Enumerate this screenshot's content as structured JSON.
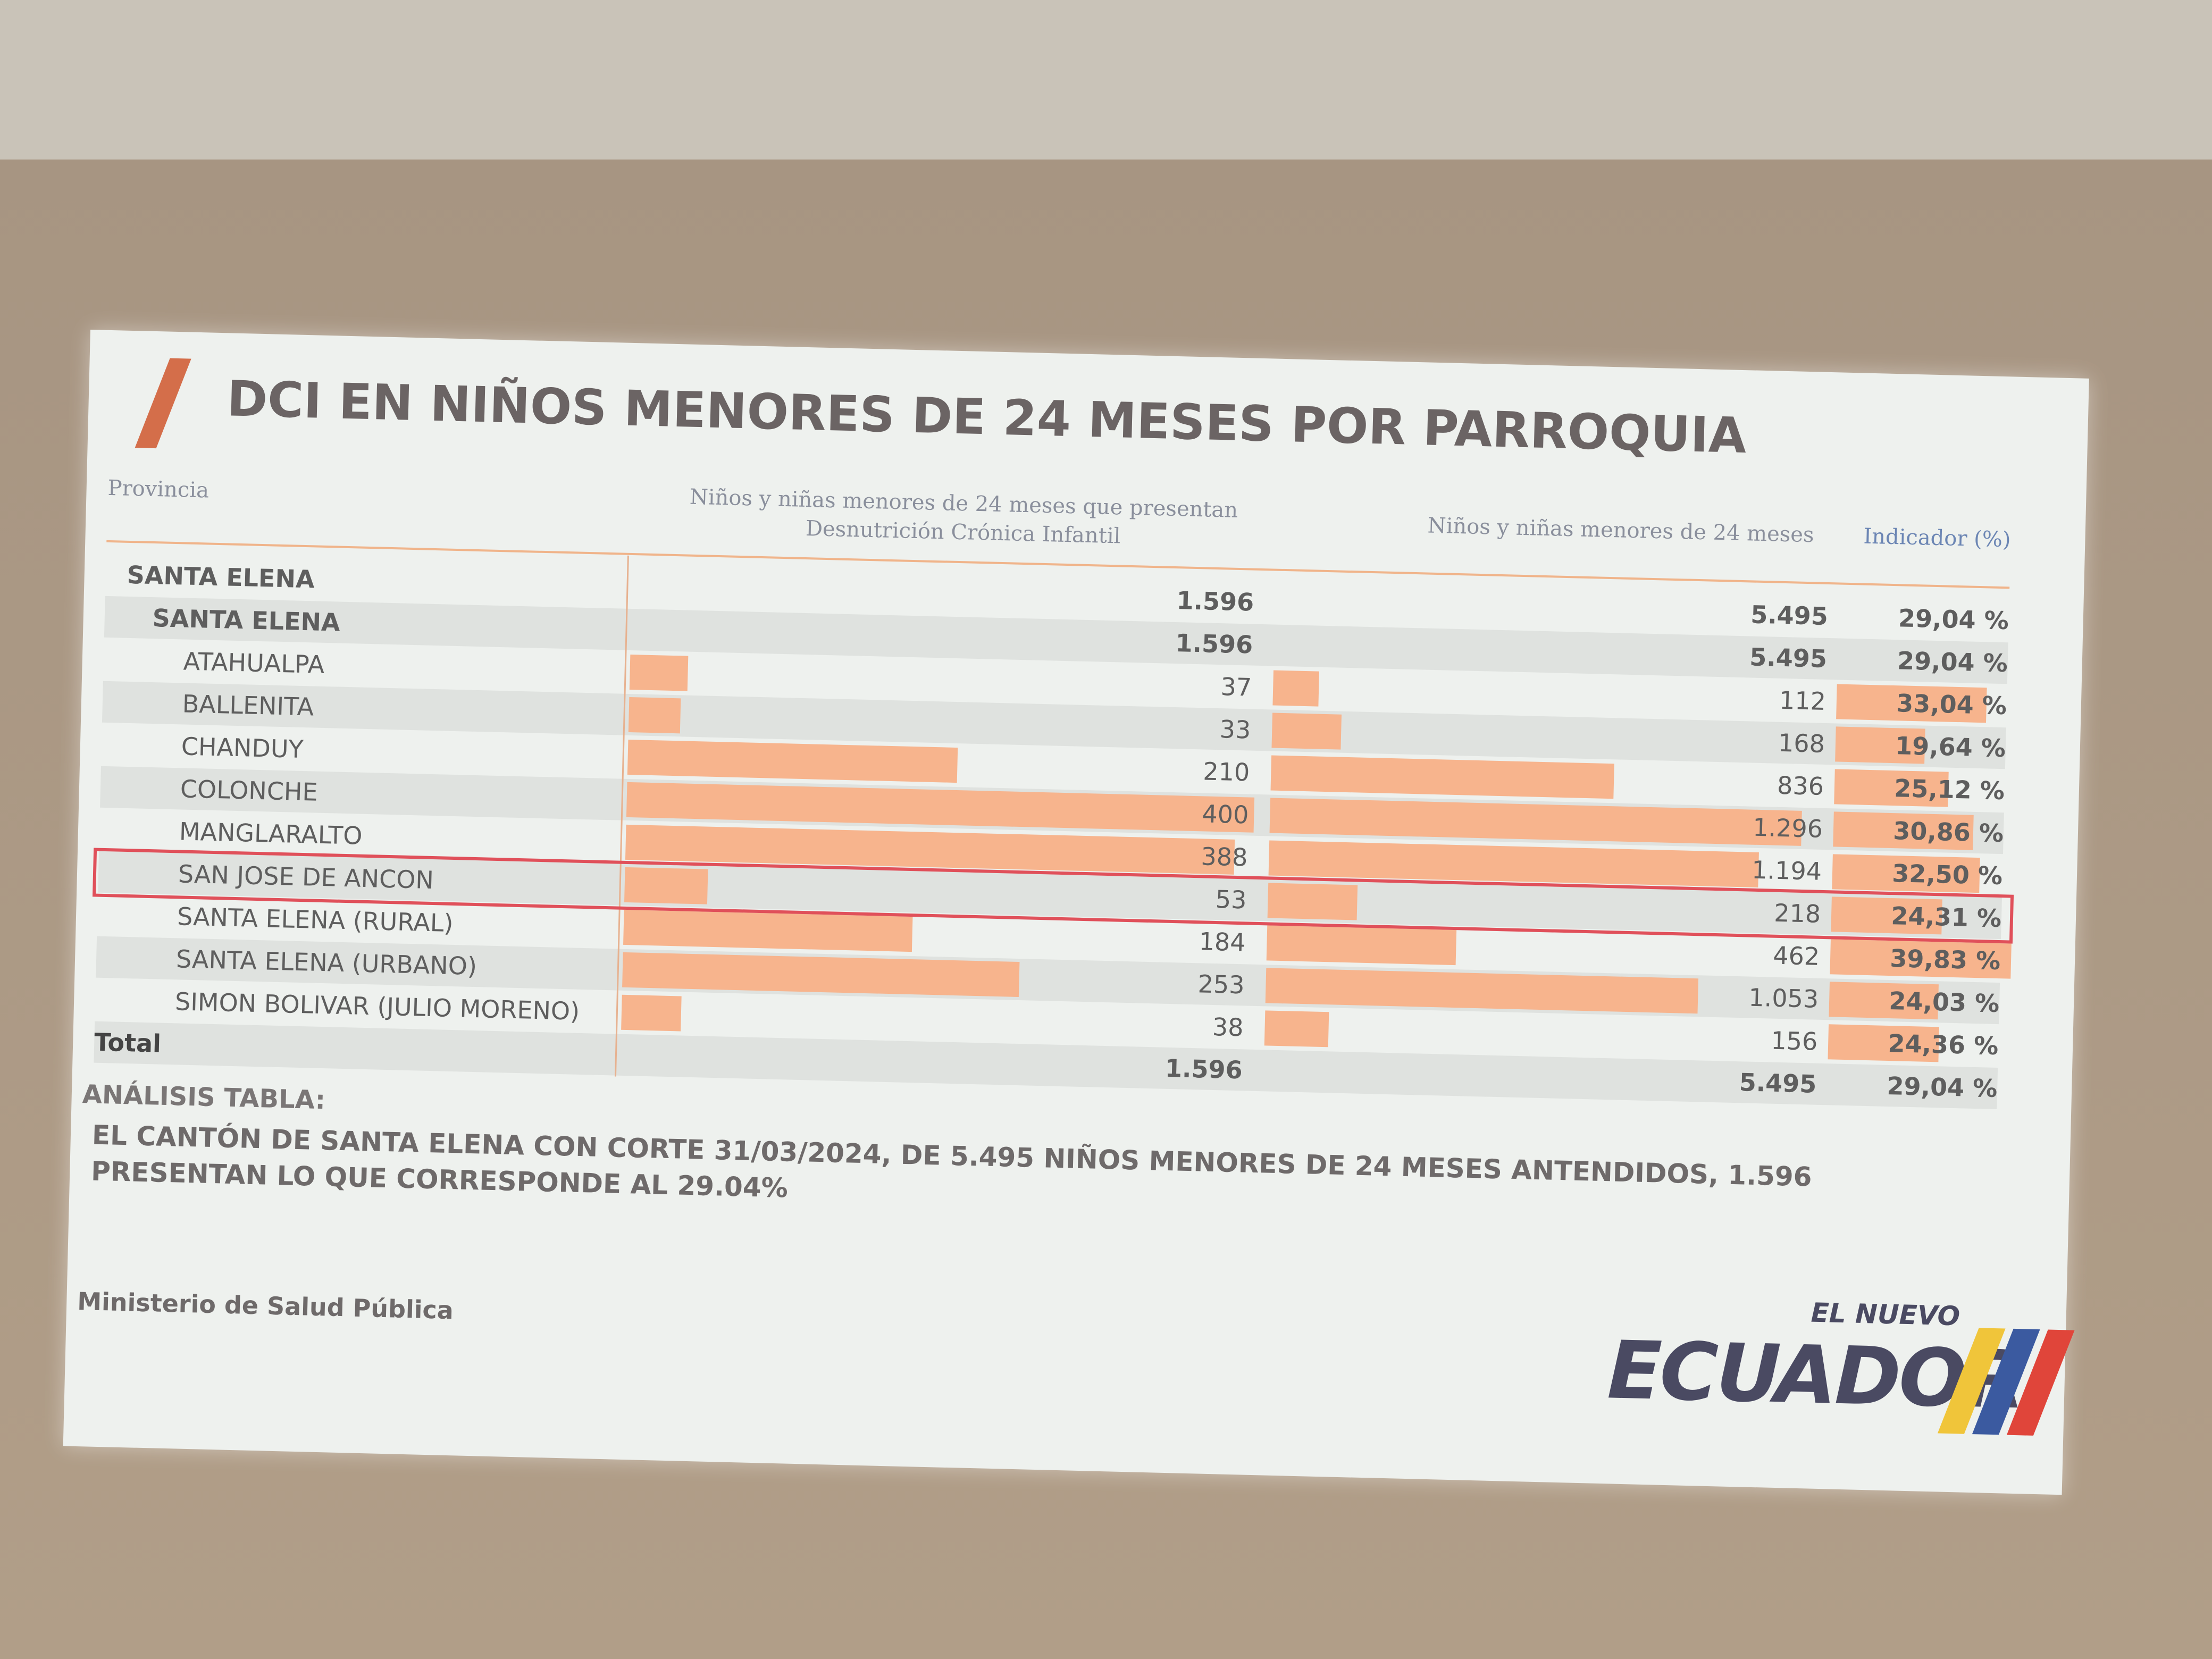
{
  "header": {
    "title": "DCI EN NIÑOS MENORES DE 24 MESES POR PARROQUIA"
  },
  "table": {
    "columns": [
      "Provincia",
      "Niños y niñas menores de 24 meses que presentan Desnutrición Crónica Infantil",
      "Niños y niñas menores de 24 meses",
      "Indicador (%)"
    ],
    "rows": [
      [
        "SANTA ELENA",
        "1.596",
        "5.495",
        "29,04 %"
      ],
      [
        "SANTA ELENA",
        "1.596",
        "5.495",
        "29,04 %"
      ],
      [
        "ATAHUALPA",
        "37",
        "112",
        "33,04 %"
      ],
      [
        "BALLENITA",
        "33",
        "168",
        "19,64 %"
      ],
      [
        "CHANDUY",
        "210",
        "836",
        "25,12 %"
      ],
      [
        "COLONCHE",
        "400",
        "1.296",
        "30,86 %"
      ],
      [
        "MANGLARALTO",
        "388",
        "1.194",
        "32,50 %"
      ],
      [
        "SAN JOSE DE ANCON",
        "53",
        "218",
        "24,31 %"
      ],
      [
        "SANTA ELENA (RURAL)",
        "184",
        "462",
        "39,83 %"
      ],
      [
        "SANTA ELENA (URBANO)",
        "253",
        "1.053",
        "24,03 %"
      ],
      [
        "SIMON BOLIVAR (JULIO MORENO)",
        "38",
        "156",
        "24,36 %"
      ]
    ],
    "total": [
      "Total",
      "1.596",
      "5.495",
      "29,04 %"
    ]
  },
  "analysis": {
    "heading": "ANÁLISIS TABLA:",
    "text": "EL CANTÓN DE SANTA ELENA CON CORTE 31/03/2024, DE 5.495 NIÑOS MENORES DE 24 MESES ANTENDIDOS, 1.596 PRESENTAN LO QUE CORRESPONDE AL 29.04%"
  },
  "footer": {
    "ministry": "Ministerio de Salud Pública",
    "logo_top": "EL NUEVO",
    "logo_main": "ECUADOR"
  }
}
